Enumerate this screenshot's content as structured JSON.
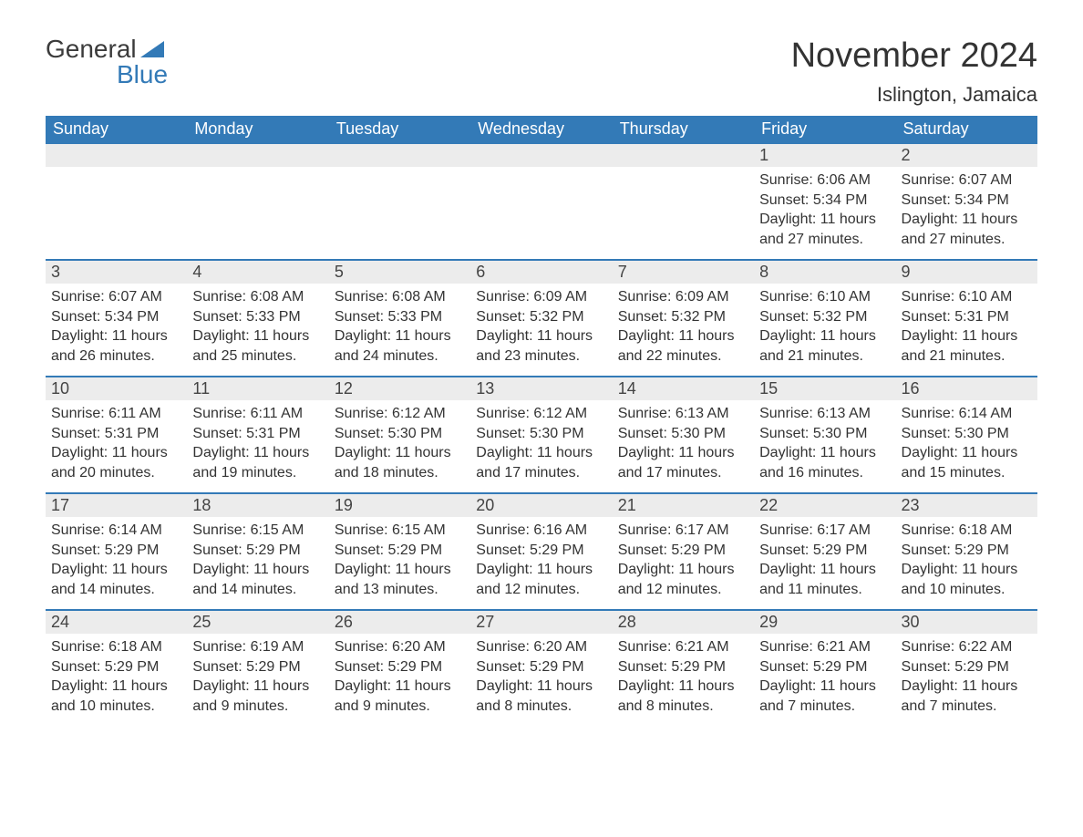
{
  "logo": {
    "word1": "General",
    "word2": "Blue"
  },
  "title": "November 2024",
  "location": "Islington, Jamaica",
  "colors": {
    "header_bg": "#337ab7",
    "header_text": "#ffffff",
    "daynum_bg": "#ececec",
    "border": "#337ab7",
    "body_text": "#333333",
    "page_bg": "#ffffff"
  },
  "weekdays": [
    "Sunday",
    "Monday",
    "Tuesday",
    "Wednesday",
    "Thursday",
    "Friday",
    "Saturday"
  ],
  "weeks": [
    [
      null,
      null,
      null,
      null,
      null,
      {
        "n": "1",
        "sr": "6:06 AM",
        "ss": "5:34 PM",
        "dl": "11 hours and 27 minutes."
      },
      {
        "n": "2",
        "sr": "6:07 AM",
        "ss": "5:34 PM",
        "dl": "11 hours and 27 minutes."
      }
    ],
    [
      {
        "n": "3",
        "sr": "6:07 AM",
        "ss": "5:34 PM",
        "dl": "11 hours and 26 minutes."
      },
      {
        "n": "4",
        "sr": "6:08 AM",
        "ss": "5:33 PM",
        "dl": "11 hours and 25 minutes."
      },
      {
        "n": "5",
        "sr": "6:08 AM",
        "ss": "5:33 PM",
        "dl": "11 hours and 24 minutes."
      },
      {
        "n": "6",
        "sr": "6:09 AM",
        "ss": "5:32 PM",
        "dl": "11 hours and 23 minutes."
      },
      {
        "n": "7",
        "sr": "6:09 AM",
        "ss": "5:32 PM",
        "dl": "11 hours and 22 minutes."
      },
      {
        "n": "8",
        "sr": "6:10 AM",
        "ss": "5:32 PM",
        "dl": "11 hours and 21 minutes."
      },
      {
        "n": "9",
        "sr": "6:10 AM",
        "ss": "5:31 PM",
        "dl": "11 hours and 21 minutes."
      }
    ],
    [
      {
        "n": "10",
        "sr": "6:11 AM",
        "ss": "5:31 PM",
        "dl": "11 hours and 20 minutes."
      },
      {
        "n": "11",
        "sr": "6:11 AM",
        "ss": "5:31 PM",
        "dl": "11 hours and 19 minutes."
      },
      {
        "n": "12",
        "sr": "6:12 AM",
        "ss": "5:30 PM",
        "dl": "11 hours and 18 minutes."
      },
      {
        "n": "13",
        "sr": "6:12 AM",
        "ss": "5:30 PM",
        "dl": "11 hours and 17 minutes."
      },
      {
        "n": "14",
        "sr": "6:13 AM",
        "ss": "5:30 PM",
        "dl": "11 hours and 17 minutes."
      },
      {
        "n": "15",
        "sr": "6:13 AM",
        "ss": "5:30 PM",
        "dl": "11 hours and 16 minutes."
      },
      {
        "n": "16",
        "sr": "6:14 AM",
        "ss": "5:30 PM",
        "dl": "11 hours and 15 minutes."
      }
    ],
    [
      {
        "n": "17",
        "sr": "6:14 AM",
        "ss": "5:29 PM",
        "dl": "11 hours and 14 minutes."
      },
      {
        "n": "18",
        "sr": "6:15 AM",
        "ss": "5:29 PM",
        "dl": "11 hours and 14 minutes."
      },
      {
        "n": "19",
        "sr": "6:15 AM",
        "ss": "5:29 PM",
        "dl": "11 hours and 13 minutes."
      },
      {
        "n": "20",
        "sr": "6:16 AM",
        "ss": "5:29 PM",
        "dl": "11 hours and 12 minutes."
      },
      {
        "n": "21",
        "sr": "6:17 AM",
        "ss": "5:29 PM",
        "dl": "11 hours and 12 minutes."
      },
      {
        "n": "22",
        "sr": "6:17 AM",
        "ss": "5:29 PM",
        "dl": "11 hours and 11 minutes."
      },
      {
        "n": "23",
        "sr": "6:18 AM",
        "ss": "5:29 PM",
        "dl": "11 hours and 10 minutes."
      }
    ],
    [
      {
        "n": "24",
        "sr": "6:18 AM",
        "ss": "5:29 PM",
        "dl": "11 hours and 10 minutes."
      },
      {
        "n": "25",
        "sr": "6:19 AM",
        "ss": "5:29 PM",
        "dl": "11 hours and 9 minutes."
      },
      {
        "n": "26",
        "sr": "6:20 AM",
        "ss": "5:29 PM",
        "dl": "11 hours and 9 minutes."
      },
      {
        "n": "27",
        "sr": "6:20 AM",
        "ss": "5:29 PM",
        "dl": "11 hours and 8 minutes."
      },
      {
        "n": "28",
        "sr": "6:21 AM",
        "ss": "5:29 PM",
        "dl": "11 hours and 8 minutes."
      },
      {
        "n": "29",
        "sr": "6:21 AM",
        "ss": "5:29 PM",
        "dl": "11 hours and 7 minutes."
      },
      {
        "n": "30",
        "sr": "6:22 AM",
        "ss": "5:29 PM",
        "dl": "11 hours and 7 minutes."
      }
    ]
  ],
  "labels": {
    "sunrise": "Sunrise: ",
    "sunset": "Sunset: ",
    "daylight": "Daylight: "
  }
}
